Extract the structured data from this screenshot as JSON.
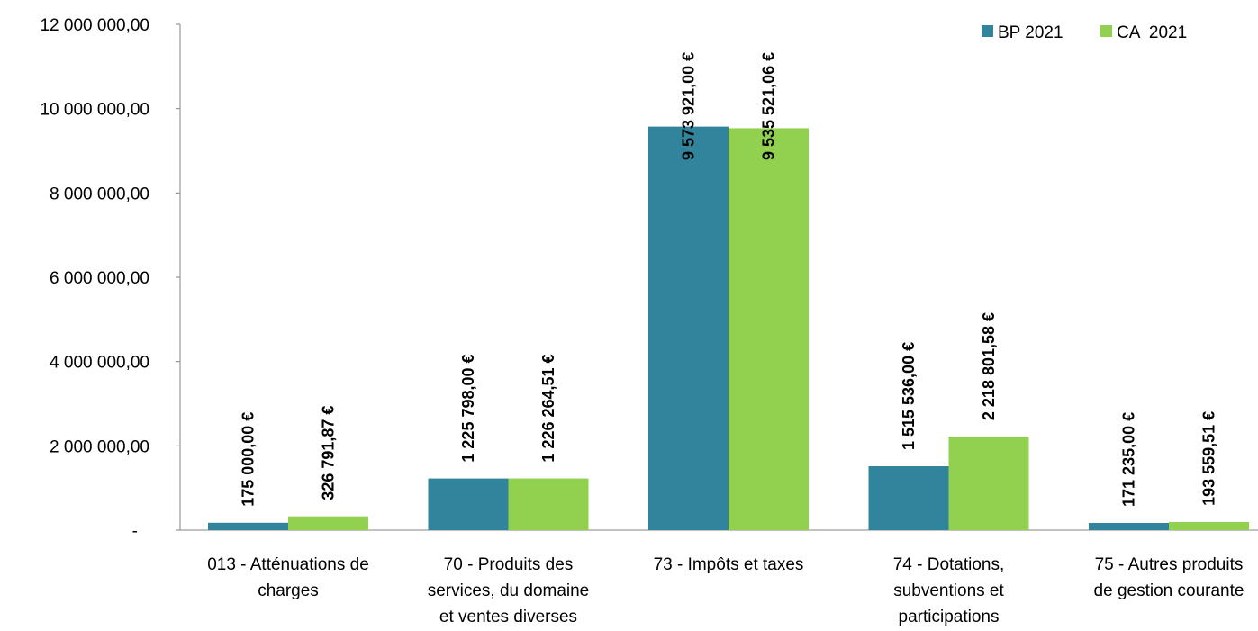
{
  "chart_data": {
    "type": "bar",
    "title": "",
    "xlabel": "",
    "ylabel": "",
    "ylim": [
      0,
      12000000
    ],
    "yticks": [
      {
        "value": 0,
        "label": "-"
      },
      {
        "value": 2000000,
        "label": "2 000 000,00"
      },
      {
        "value": 4000000,
        "label": "4 000 000,00"
      },
      {
        "value": 6000000,
        "label": "6 000 000,00"
      },
      {
        "value": 8000000,
        "label": "8 000 000,00"
      },
      {
        "value": 10000000,
        "label": "10 000 000,00"
      },
      {
        "value": 12000000,
        "label": "12 000 000,00"
      }
    ],
    "categories": [
      [
        "013 - Atténuations de",
        "charges"
      ],
      [
        "70 - Produits des",
        "services, du domaine",
        "et ventes diverses"
      ],
      [
        "73 - Impôts et taxes"
      ],
      [
        "74 - Dotations,",
        "subventions et",
        "participations"
      ],
      [
        "75 - Autres produits",
        "de gestion courante"
      ]
    ],
    "series": [
      {
        "name": "BP 2021",
        "color": "#31849B",
        "values": [
          175000.0,
          1225798.0,
          9573921.0,
          1515536.0,
          171235.0
        ],
        "labels": [
          "175 000,00 €",
          "1 225 798,00 €",
          "9 573 921,00 €",
          "1 515 536,00 €",
          "171 235,00 €"
        ]
      },
      {
        "name": "CA  2021",
        "color": "#92D050",
        "values": [
          326791.87,
          1226264.51,
          9535521.06,
          2218801.58,
          193559.51
        ],
        "labels": [
          "326 791,87 €",
          "1 226 264,51 €",
          "9 535 521,06 €",
          "2 218 801,58 €",
          "193 559,51 €"
        ]
      }
    ],
    "legend_position": "top-right",
    "grid": false
  }
}
